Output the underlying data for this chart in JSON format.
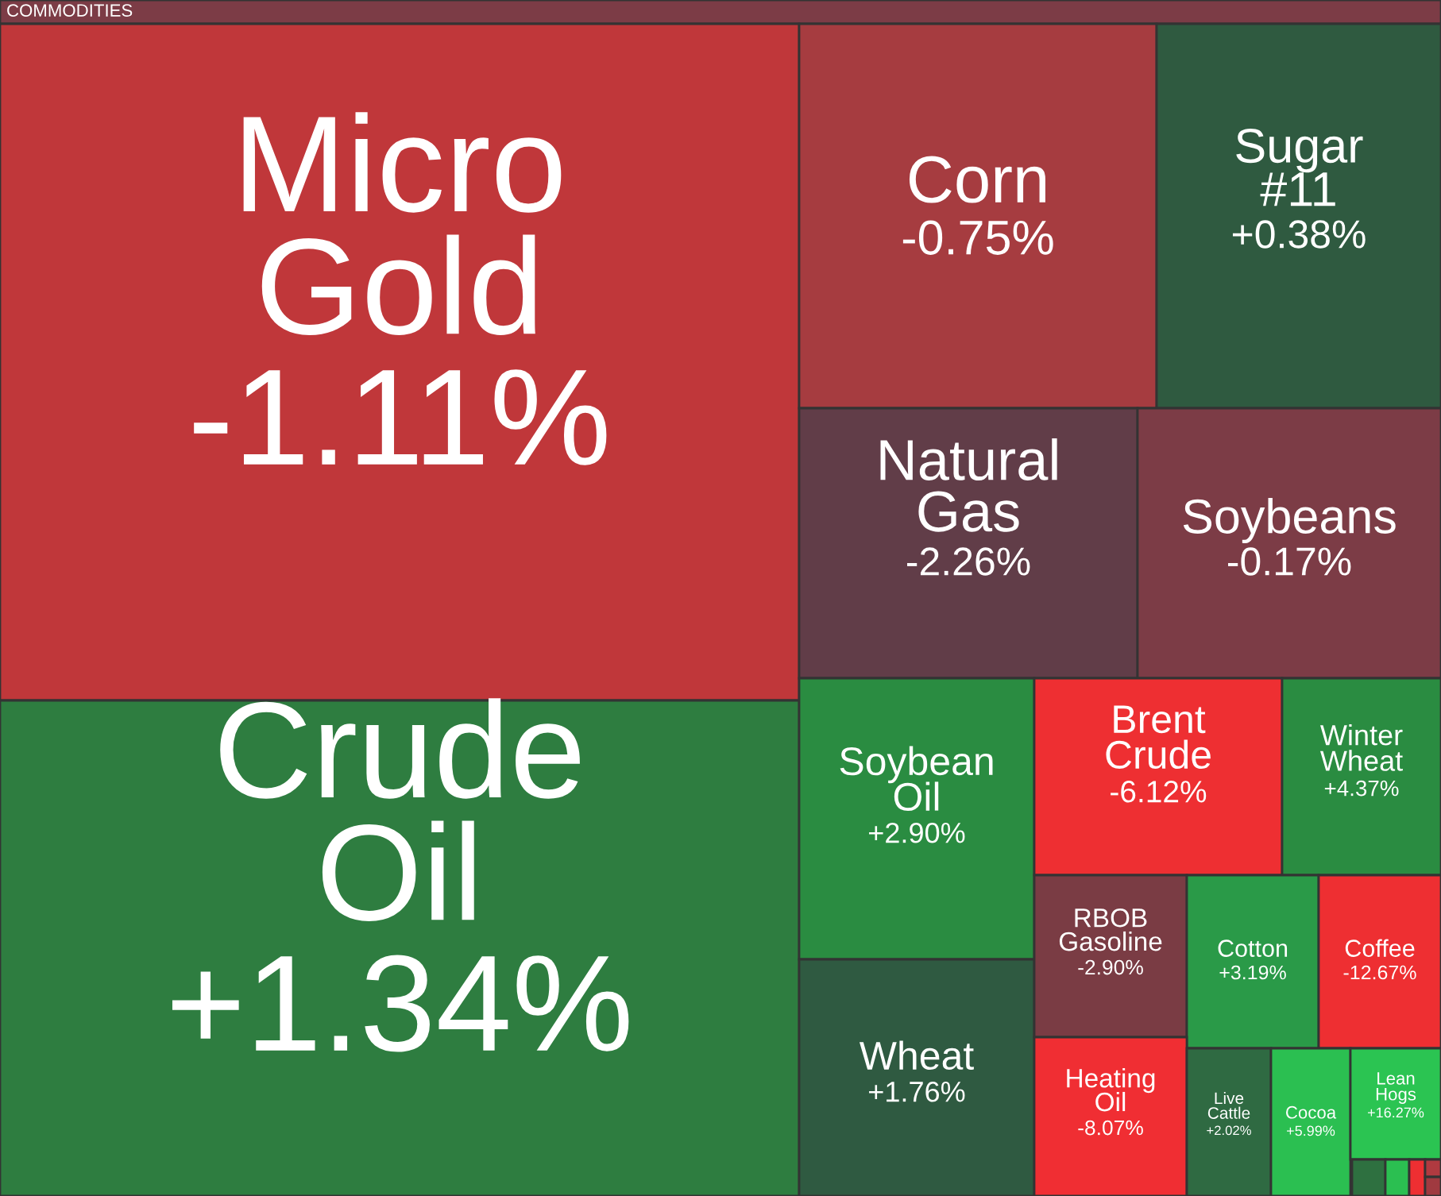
{
  "chart_data": {
    "type": "other",
    "title": "COMMODITIES",
    "categories": [
      "Micro Gold",
      "Crude Oil",
      "Corn",
      "Sugar #11",
      "Natural Gas",
      "Soybeans",
      "Soybean Oil",
      "Wheat",
      "Brent Crude",
      "Winter Wheat",
      "RBOB Gasoline",
      "Cotton",
      "Coffee",
      "Heating Oil",
      "Live Cattle",
      "Cocoa",
      "Lean Hogs",
      null,
      null,
      null,
      null,
      null
    ],
    "values": [
      -1.11,
      1.34,
      -0.75,
      0.38,
      -2.26,
      -0.17,
      2.9,
      1.76,
      -6.12,
      4.37,
      -2.9,
      3.19,
      -12.67,
      -8.07,
      2.02,
      5.99,
      16.27,
      null,
      null,
      null,
      null,
      null
    ],
    "value_labels": [
      "-1.11%",
      "+1.34%",
      "-0.75%",
      "+0.38%",
      "-2.26%",
      "-0.17%",
      "+2.90%",
      "+1.76%",
      "-6.12%",
      "+4.37%",
      "-2.90%",
      "+3.19%",
      "-12.67%",
      "-8.07%",
      "+2.02%",
      "+5.99%",
      "+16.27%",
      null,
      null,
      null,
      null,
      null
    ],
    "colors": [
      "#c0373a",
      "#2e7d40",
      "#a63c40",
      "#2f5a40",
      "#613d48",
      "#7c3c46",
      "#2a8c41",
      "#2f5a41",
      "#ee2f32",
      "#2a8c41",
      "#7a3c44",
      "#2a9a48",
      "#ee2f32",
      "#f02e33",
      "#2f6a42",
      "#2bbf51",
      "#2bc452",
      "#2e7040",
      "#2bbf51",
      "#ee2f32",
      "#b03a40",
      "#a03a40"
    ]
  }
}
